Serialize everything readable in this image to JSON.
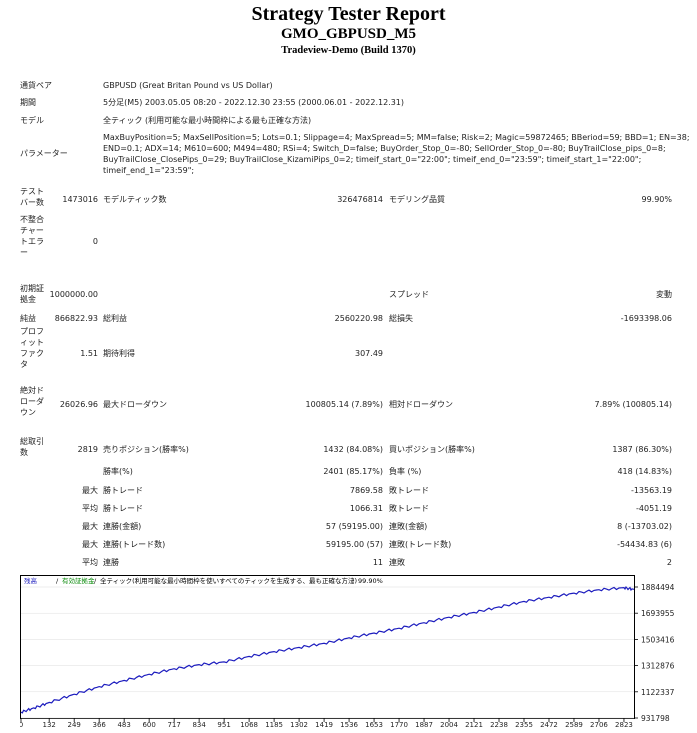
{
  "header": {
    "title": "Strategy Tester Report",
    "subtitle": "GMO_GBPUSD_M5",
    "build": "Tradeview-Demo (Build 1370)"
  },
  "info": {
    "pair_label": "通貨ペア",
    "pair_value": "GBPUSD (Great Britan Pound vs US Dollar)",
    "period_label": "期間",
    "period_value": "5分足(M5) 2003.05.05 08:20 - 2022.12.30 23:55 (2000.06.01 - 2022.12.31)",
    "model_label": "モデル",
    "model_value": "全ティック (利用可能な最小時間枠による最も正確な方法)",
    "params_label": "パラメーター",
    "params_lines": [
      "MaxBuyPosition=5; MaxSellPosition=5; Lots=0.1; Slippage=4; MaxSpread=5; MM=false; Risk=2; Magic=59872465; BBeriod=59; BBD=1; EN=38;",
      "END=0.1; ADX=14; M610=600; M494=480; RSi=4; Switch_D=false; BuyOrder_Stop_0=-80; SellOrder_Stop_0=-80; BuyTrailClose_pips_0=8;",
      "BuyTrailClose_ClosePips_0=29; BuyTrailClose_KizamiPips_0=2; timeif_start_0=\"22:00\"; timeif_end_0=\"23:59\"; timeif_start_1=\"22:00\";",
      "timeif_end_1=\"23:59\";"
    ]
  },
  "stats": {
    "bars_label": "テスト\nバー数",
    "bars_value": "1473016",
    "ticks_label": "モデルティック数",
    "ticks_value": "326476814",
    "quality_label": "モデリング品質",
    "quality_value": "99.90%",
    "mismatch_label": "不整合\nチャー\nトエラ\nー",
    "mismatch_value": "0",
    "deposit_label": "初期証\n拠金",
    "deposit_value": "1000000.00",
    "spread_label": "スプレッド",
    "spread_value": "変動",
    "netprofit_label": "純益",
    "netprofit_value": "866822.93",
    "grossprofit_label": "総利益",
    "grossprofit_value": "2560220.98",
    "grossloss_label": "総損失",
    "grossloss_value": "-1693398.06",
    "pf_label": "プロフ\nィット\nファク\nタ",
    "pf_value": "1.51",
    "expected_label": "期待利得",
    "expected_value": "307.49",
    "absdd_label": "絶対ド\nローダ\nウン",
    "absdd_value": "26026.96",
    "maxdd_label": "最大ドローダウン",
    "maxdd_value": "100805.14 (7.89%)",
    "reldd_label": "相対ドローダウン",
    "reldd_value": "7.89% (100805.14)",
    "trades_label": "総取引\n数",
    "trades_value": "2819",
    "short_label": "売りポジション(勝率%)",
    "short_value": "1432 (84.08%)",
    "long_label": "買いポジション(勝率%)",
    "long_value": "1387 (86.30%)",
    "win_label": "勝率(%)",
    "win_value": "2401 (85.17%)",
    "loss_label": "負率 (%)",
    "loss_value": "418 (14.83%)",
    "max_prefix": "最大",
    "avg_prefix": "平均",
    "largest_win_label": "勝トレード",
    "largest_win_value": "7869.58",
    "largest_loss_label": "敗トレード",
    "largest_loss_value": "-13563.19",
    "avg_win_label": "勝トレード",
    "avg_win_value": "1066.31",
    "avg_loss_label": "敗トレード",
    "avg_loss_value": "-4051.19",
    "cons_wins_label": "連勝(金額)",
    "cons_wins_value": "57 (59195.00)",
    "cons_losses_label": "連敗(金額)",
    "cons_losses_value": "8 (-13703.02)",
    "cons_profit_label": "連勝(トレード数)",
    "cons_profit_value": "59195.00 (57)",
    "cons_loss_label": "連敗(トレード数)",
    "cons_loss_value": "-54434.83 (6)",
    "avg_cons_wins_label": "連勝",
    "avg_cons_wins_value": "11",
    "avg_cons_losses_label": "連敗",
    "avg_cons_losses_value": "2"
  },
  "chart_data": {
    "type": "line",
    "legend": [
      "残高",
      "/",
      "有効証拠金",
      "/",
      "全ティック(利用可能な最小時間枠を使いすべてのティックを生成する、最も正確な方法)",
      "/",
      "99.90%"
    ],
    "x_ticks": [
      0,
      132,
      249,
      366,
      483,
      600,
      717,
      834,
      951,
      1068,
      1185,
      1302,
      1419,
      1536,
      1653,
      1770,
      1887,
      2004,
      2121,
      2238,
      2355,
      2472,
      2589,
      2706,
      2823
    ],
    "y_ticks": [
      "1884494",
      "1693955",
      "1503416",
      "1312876",
      "1122337",
      "931798"
    ],
    "ylim": [
      931798,
      1884494
    ],
    "xlim": [
      0,
      2870
    ],
    "x": [
      0,
      60,
      132,
      249,
      366,
      483,
      600,
      717,
      834,
      951,
      1068,
      1185,
      1302,
      1419,
      1536,
      1653,
      1770,
      1887,
      2004,
      2121,
      2238,
      2355,
      2472,
      2589,
      2706,
      2823,
      2870
    ],
    "y": [
      975000,
      1005000,
      1045000,
      1105000,
      1160000,
      1205000,
      1250000,
      1290000,
      1320000,
      1340000,
      1380000,
      1415000,
      1445000,
      1475000,
      1515000,
      1550000,
      1585000,
      1625000,
      1665000,
      1700000,
      1740000,
      1780000,
      1810000,
      1840000,
      1865000,
      1880000,
      1868000
    ],
    "colors": {
      "balance": "#1c1cbe",
      "equity": "#0a8a0a",
      "grid": "#dddddd"
    }
  }
}
